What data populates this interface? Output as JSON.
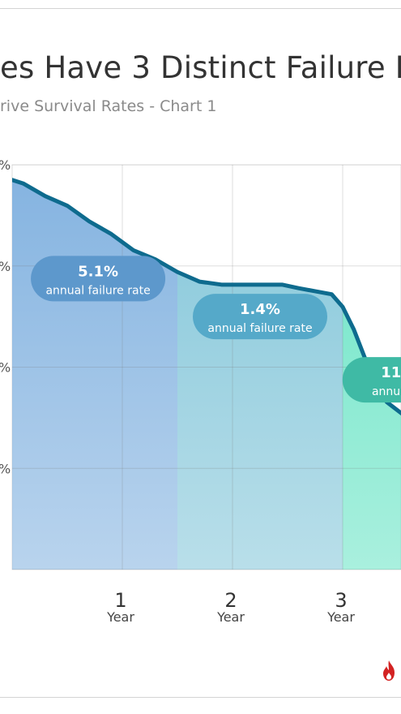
{
  "title": "es Have 3 Distinct Failure R",
  "subtitle": "rive Survival Rates - Chart 1",
  "colors": {
    "line": "#0e6b8e",
    "phase1": "#7fb0df",
    "phase2": "#7fc4d8",
    "phase3": "#63e3c3",
    "label_bg_1": "#5d98cc",
    "label_bg_2": "#55a9c9",
    "label_bg_3": "#3fbaa5"
  },
  "chart_data": {
    "type": "area",
    "xlabel": "",
    "ylabel": "",
    "x_ticks": [
      {
        "value": 1,
        "label": "1",
        "sub": "Year"
      },
      {
        "value": 2,
        "label": "2",
        "sub": "Year"
      },
      {
        "value": 3,
        "label": "3",
        "sub": "Year"
      }
    ],
    "y_tick_labels": [
      "%",
      "%",
      "%",
      "%"
    ],
    "xlim": [
      0,
      3.55
    ],
    "series": [
      {
        "values": [
          {
            "x": 0.0,
            "y": 97.0
          },
          {
            "x": 0.1,
            "y": 96.3
          },
          {
            "x": 0.3,
            "y": 93.8
          },
          {
            "x": 0.5,
            "y": 91.9
          },
          {
            "x": 0.7,
            "y": 88.8
          },
          {
            "x": 0.9,
            "y": 86.3
          },
          {
            "x": 1.1,
            "y": 83.1
          },
          {
            "x": 1.3,
            "y": 81.3
          },
          {
            "x": 1.5,
            "y": 78.8
          },
          {
            "x": 1.7,
            "y": 76.9
          },
          {
            "x": 1.9,
            "y": 76.3
          },
          {
            "x": 2.1,
            "y": 76.3
          },
          {
            "x": 2.3,
            "y": 76.3
          },
          {
            "x": 2.45,
            "y": 76.3
          },
          {
            "x": 2.6,
            "y": 75.6
          },
          {
            "x": 2.75,
            "y": 75.0
          },
          {
            "x": 2.9,
            "y": 74.4
          },
          {
            "x": 3.0,
            "y": 71.9
          },
          {
            "x": 3.1,
            "y": 67.5
          },
          {
            "x": 3.2,
            "y": 61.9
          },
          {
            "x": 3.3,
            "y": 56.9
          },
          {
            "x": 3.4,
            "y": 53.1
          },
          {
            "x": 3.55,
            "y": 50.6
          }
        ]
      }
    ],
    "phases": [
      {
        "from": 0,
        "to": 1.5,
        "rate": "5.1%",
        "text": "annual failure rate",
        "label_x": 0.78,
        "label_y": 77.5
      },
      {
        "from": 1.5,
        "to": 3.0,
        "rate": "1.4%",
        "text": "annual failure rate",
        "label_x": 2.25,
        "label_y": 70.0
      },
      {
        "from": 3.0,
        "to": 3.55,
        "rate": "11",
        "text": "annual",
        "label_x": 3.55,
        "label_y": 57.5
      }
    ],
    "grid": true
  }
}
